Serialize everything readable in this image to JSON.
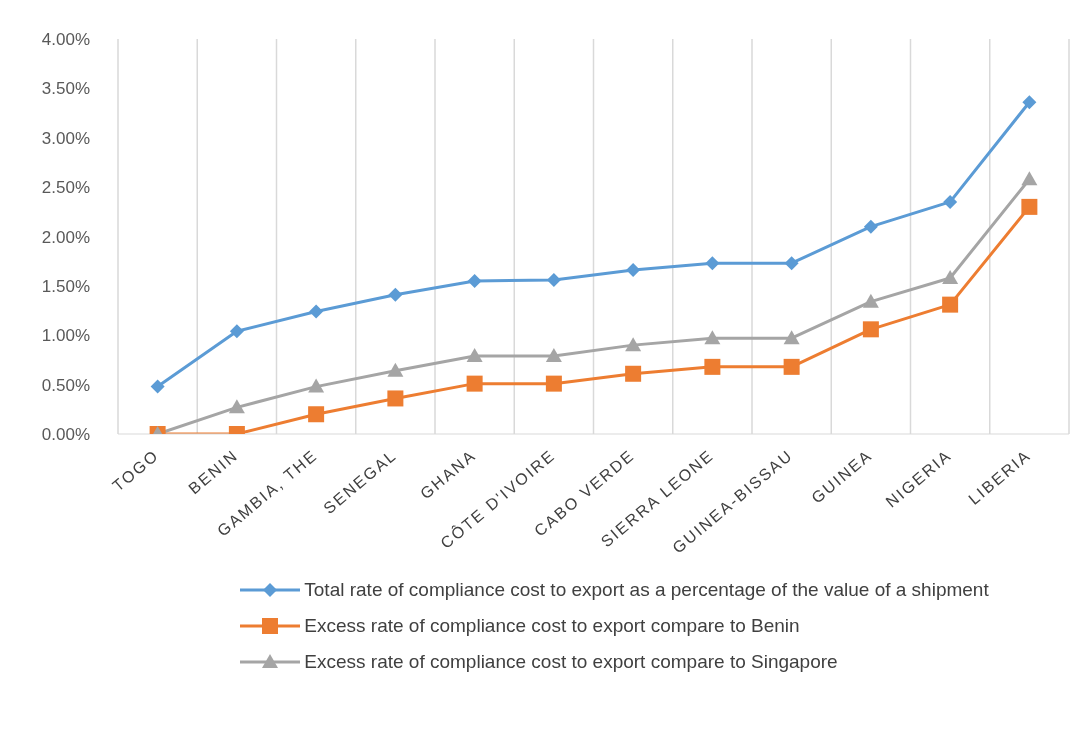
{
  "chart_data": {
    "type": "line",
    "categories": [
      "TOGO",
      "BENIN",
      "GAMBIA, THE",
      "SENEGAL",
      "GHANA",
      "CÔTE D'IVOIRE",
      "CABO VERDE",
      "SIERRA LEONE",
      "GUINEA-BISSAU",
      "GUINEA",
      "NIGERIA",
      "LIBERIA"
    ],
    "series": [
      {
        "name": "Total rate of compliance cost to export as a percentage of the value of a shipment",
        "color": "#5b9bd5",
        "marker": "diamond",
        "values": [
          0.48,
          1.04,
          1.24,
          1.41,
          1.55,
          1.56,
          1.66,
          1.73,
          1.73,
          2.1,
          2.35,
          3.36
        ]
      },
      {
        "name": "Excess rate of compliance cost to export compare to Benin",
        "color": "#ed7d31",
        "marker": "square",
        "values": [
          0,
          0,
          0.2,
          0.36,
          0.51,
          0.51,
          0.61,
          0.68,
          0.68,
          1.06,
          1.31,
          2.3
        ]
      },
      {
        "name": "Excess rate of compliance cost to export compare to Singapore",
        "color": "#a5a5a5",
        "marker": "triangle",
        "values": [
          0,
          0.27,
          0.48,
          0.64,
          0.79,
          0.79,
          0.9,
          0.97,
          0.97,
          1.34,
          1.58,
          2.58
        ]
      }
    ],
    "ylim": [
      0,
      4
    ],
    "yticks": [
      {
        "value": 0,
        "label": "0.00%"
      },
      {
        "value": 0.5,
        "label": "0.50%"
      },
      {
        "value": 1,
        "label": "1.00%"
      },
      {
        "value": 1.5,
        "label": "1.50%"
      },
      {
        "value": 2,
        "label": "2.00%"
      },
      {
        "value": 2.5,
        "label": "2.50%"
      },
      {
        "value": 3,
        "label": "3.00%"
      },
      {
        "value": 3.5,
        "label": "3.50%"
      },
      {
        "value": 4,
        "label": "4.00%"
      }
    ],
    "grid": "x",
    "legend": "bottom",
    "line_style": "solid"
  }
}
